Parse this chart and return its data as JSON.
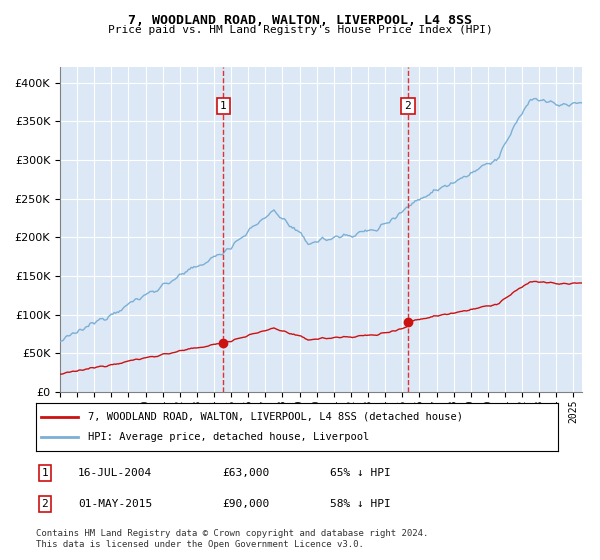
{
  "title": "7, WOODLAND ROAD, WALTON, LIVERPOOL, L4 8SS",
  "subtitle": "Price paid vs. HM Land Registry's House Price Index (HPI)",
  "legend_line1": "7, WOODLAND ROAD, WALTON, LIVERPOOL, L4 8SS (detached house)",
  "legend_line2": "HPI: Average price, detached house, Liverpool",
  "annotation1_date": "16-JUL-2004",
  "annotation1_price": "£63,000",
  "annotation1_hpi": "65% ↓ HPI",
  "annotation1_year": 2004.542,
  "annotation1_value": 63000,
  "annotation2_date": "01-MAY-2015",
  "annotation2_price": "£90,000",
  "annotation2_hpi": "58% ↓ HPI",
  "annotation2_year": 2015.333,
  "annotation2_value": 90000,
  "hpi_color": "#7bafd4",
  "price_color": "#cc1111",
  "shade_color": "#dce8f5",
  "footer": "Contains HM Land Registry data © Crown copyright and database right 2024.\nThis data is licensed under the Open Government Licence v3.0.",
  "ylim": [
    0,
    420000
  ],
  "yticks": [
    0,
    50000,
    100000,
    150000,
    200000,
    250000,
    300000,
    350000,
    400000
  ],
  "xmin": 1995,
  "xmax": 2025.5
}
